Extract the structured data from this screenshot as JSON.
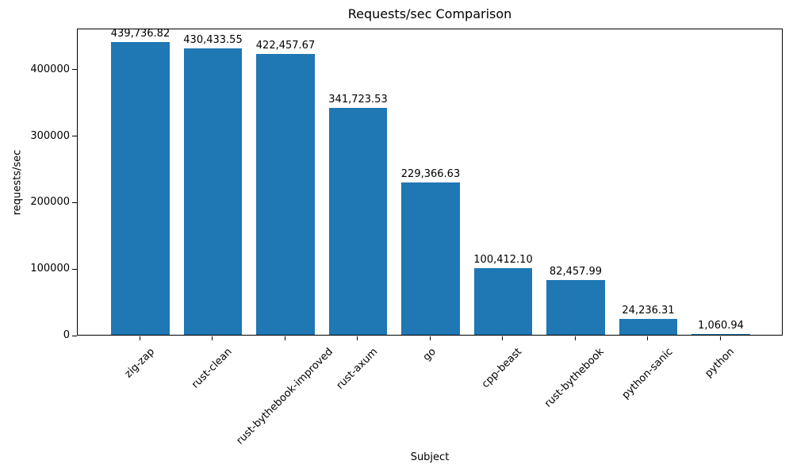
{
  "chart_data": {
    "type": "bar",
    "title": "Requests/sec Comparison",
    "xlabel": "Subject",
    "ylabel": "requests/sec",
    "categories": [
      "zig-zap",
      "rust-clean",
      "rust-bythebook-improved",
      "rust-axum",
      "go",
      "cpp-beast",
      "rust-bythebook",
      "python-sanic",
      "python"
    ],
    "values": [
      439736.82,
      430433.55,
      422457.67,
      341723.53,
      229366.63,
      100412.1,
      82457.99,
      24236.31,
      1060.94
    ],
    "value_labels": [
      "439,736.82",
      "430,433.55",
      "422,457.67",
      "341,723.53",
      "229,366.63",
      "100,412.10",
      "82,457.99",
      "24,236.31",
      "1,060.94"
    ],
    "yticks": [
      {
        "value": 0,
        "label": "0"
      },
      {
        "value": 100000,
        "label": "100000"
      },
      {
        "value": 200000,
        "label": "200000"
      },
      {
        "value": 300000,
        "label": "300000"
      },
      {
        "value": 400000,
        "label": "400000"
      }
    ],
    "ylim": [
      0,
      461724
    ],
    "bar_color": "#1f77b4",
    "grid": false,
    "legend": null
  }
}
